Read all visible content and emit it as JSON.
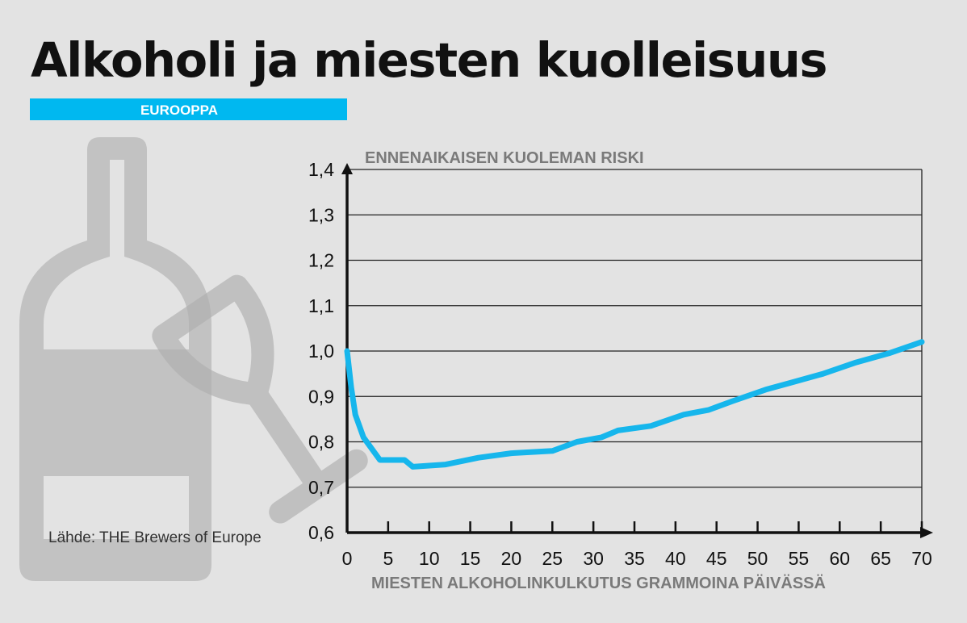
{
  "header": {
    "title": "Alkoholi ja miesten kuolleisuus",
    "subtitle": "EUROOPPA"
  },
  "source": "Lähde: THE Brewers of Europe",
  "colors": {
    "background": "#e3e3e3",
    "accent": "#00b8f0",
    "line": "#16b6ec",
    "axis": "#111111",
    "grid": "#222222",
    "illustration": "#c2c2c2"
  },
  "illustration": {
    "icons": [
      "wine-bottle-icon",
      "wine-glass-icon"
    ]
  },
  "chart_data": {
    "type": "line",
    "title": "Alkoholi ja miesten kuolleisuus",
    "subtitle": "EUROOPPA",
    "xlabel": "MIESTEN ALKOHOLINKULKUTUS GRAMMOINA PÄIVÄSSÄ",
    "ylabel": "ENNENAIKAISEN KUOLEMAN RISKI",
    "xlim": [
      0,
      70
    ],
    "ylim": [
      0.6,
      1.4
    ],
    "x_ticks": [
      0,
      5,
      10,
      15,
      20,
      25,
      30,
      35,
      40,
      45,
      50,
      55,
      60,
      65,
      70
    ],
    "x_tick_labels": [
      "0",
      "5",
      "10",
      "15",
      "20",
      "25",
      "30",
      "35",
      "40",
      "45",
      "50",
      "55",
      "60",
      "65",
      "70"
    ],
    "y_ticks": [
      0.6,
      0.7,
      0.8,
      0.9,
      1.0,
      1.1,
      1.2,
      1.3,
      1.4
    ],
    "y_tick_labels": [
      "0,6",
      "0,7",
      "0,8",
      "0,9",
      "1,0",
      "1,1",
      "1,2",
      "1,3",
      "1,4"
    ],
    "grid": "horizontal",
    "series": [
      {
        "x": [
          0,
          0.5,
          1,
          2,
          4,
          7,
          8,
          12,
          16,
          20,
          25,
          28,
          31,
          33,
          37,
          41,
          44,
          47,
          51,
          54,
          58,
          62,
          66,
          70
        ],
        "y": [
          1.0,
          0.92,
          0.86,
          0.81,
          0.76,
          0.76,
          0.745,
          0.75,
          0.765,
          0.775,
          0.78,
          0.8,
          0.81,
          0.825,
          0.835,
          0.86,
          0.87,
          0.89,
          0.915,
          0.93,
          0.95,
          0.975,
          0.995,
          1.02
        ]
      }
    ]
  }
}
